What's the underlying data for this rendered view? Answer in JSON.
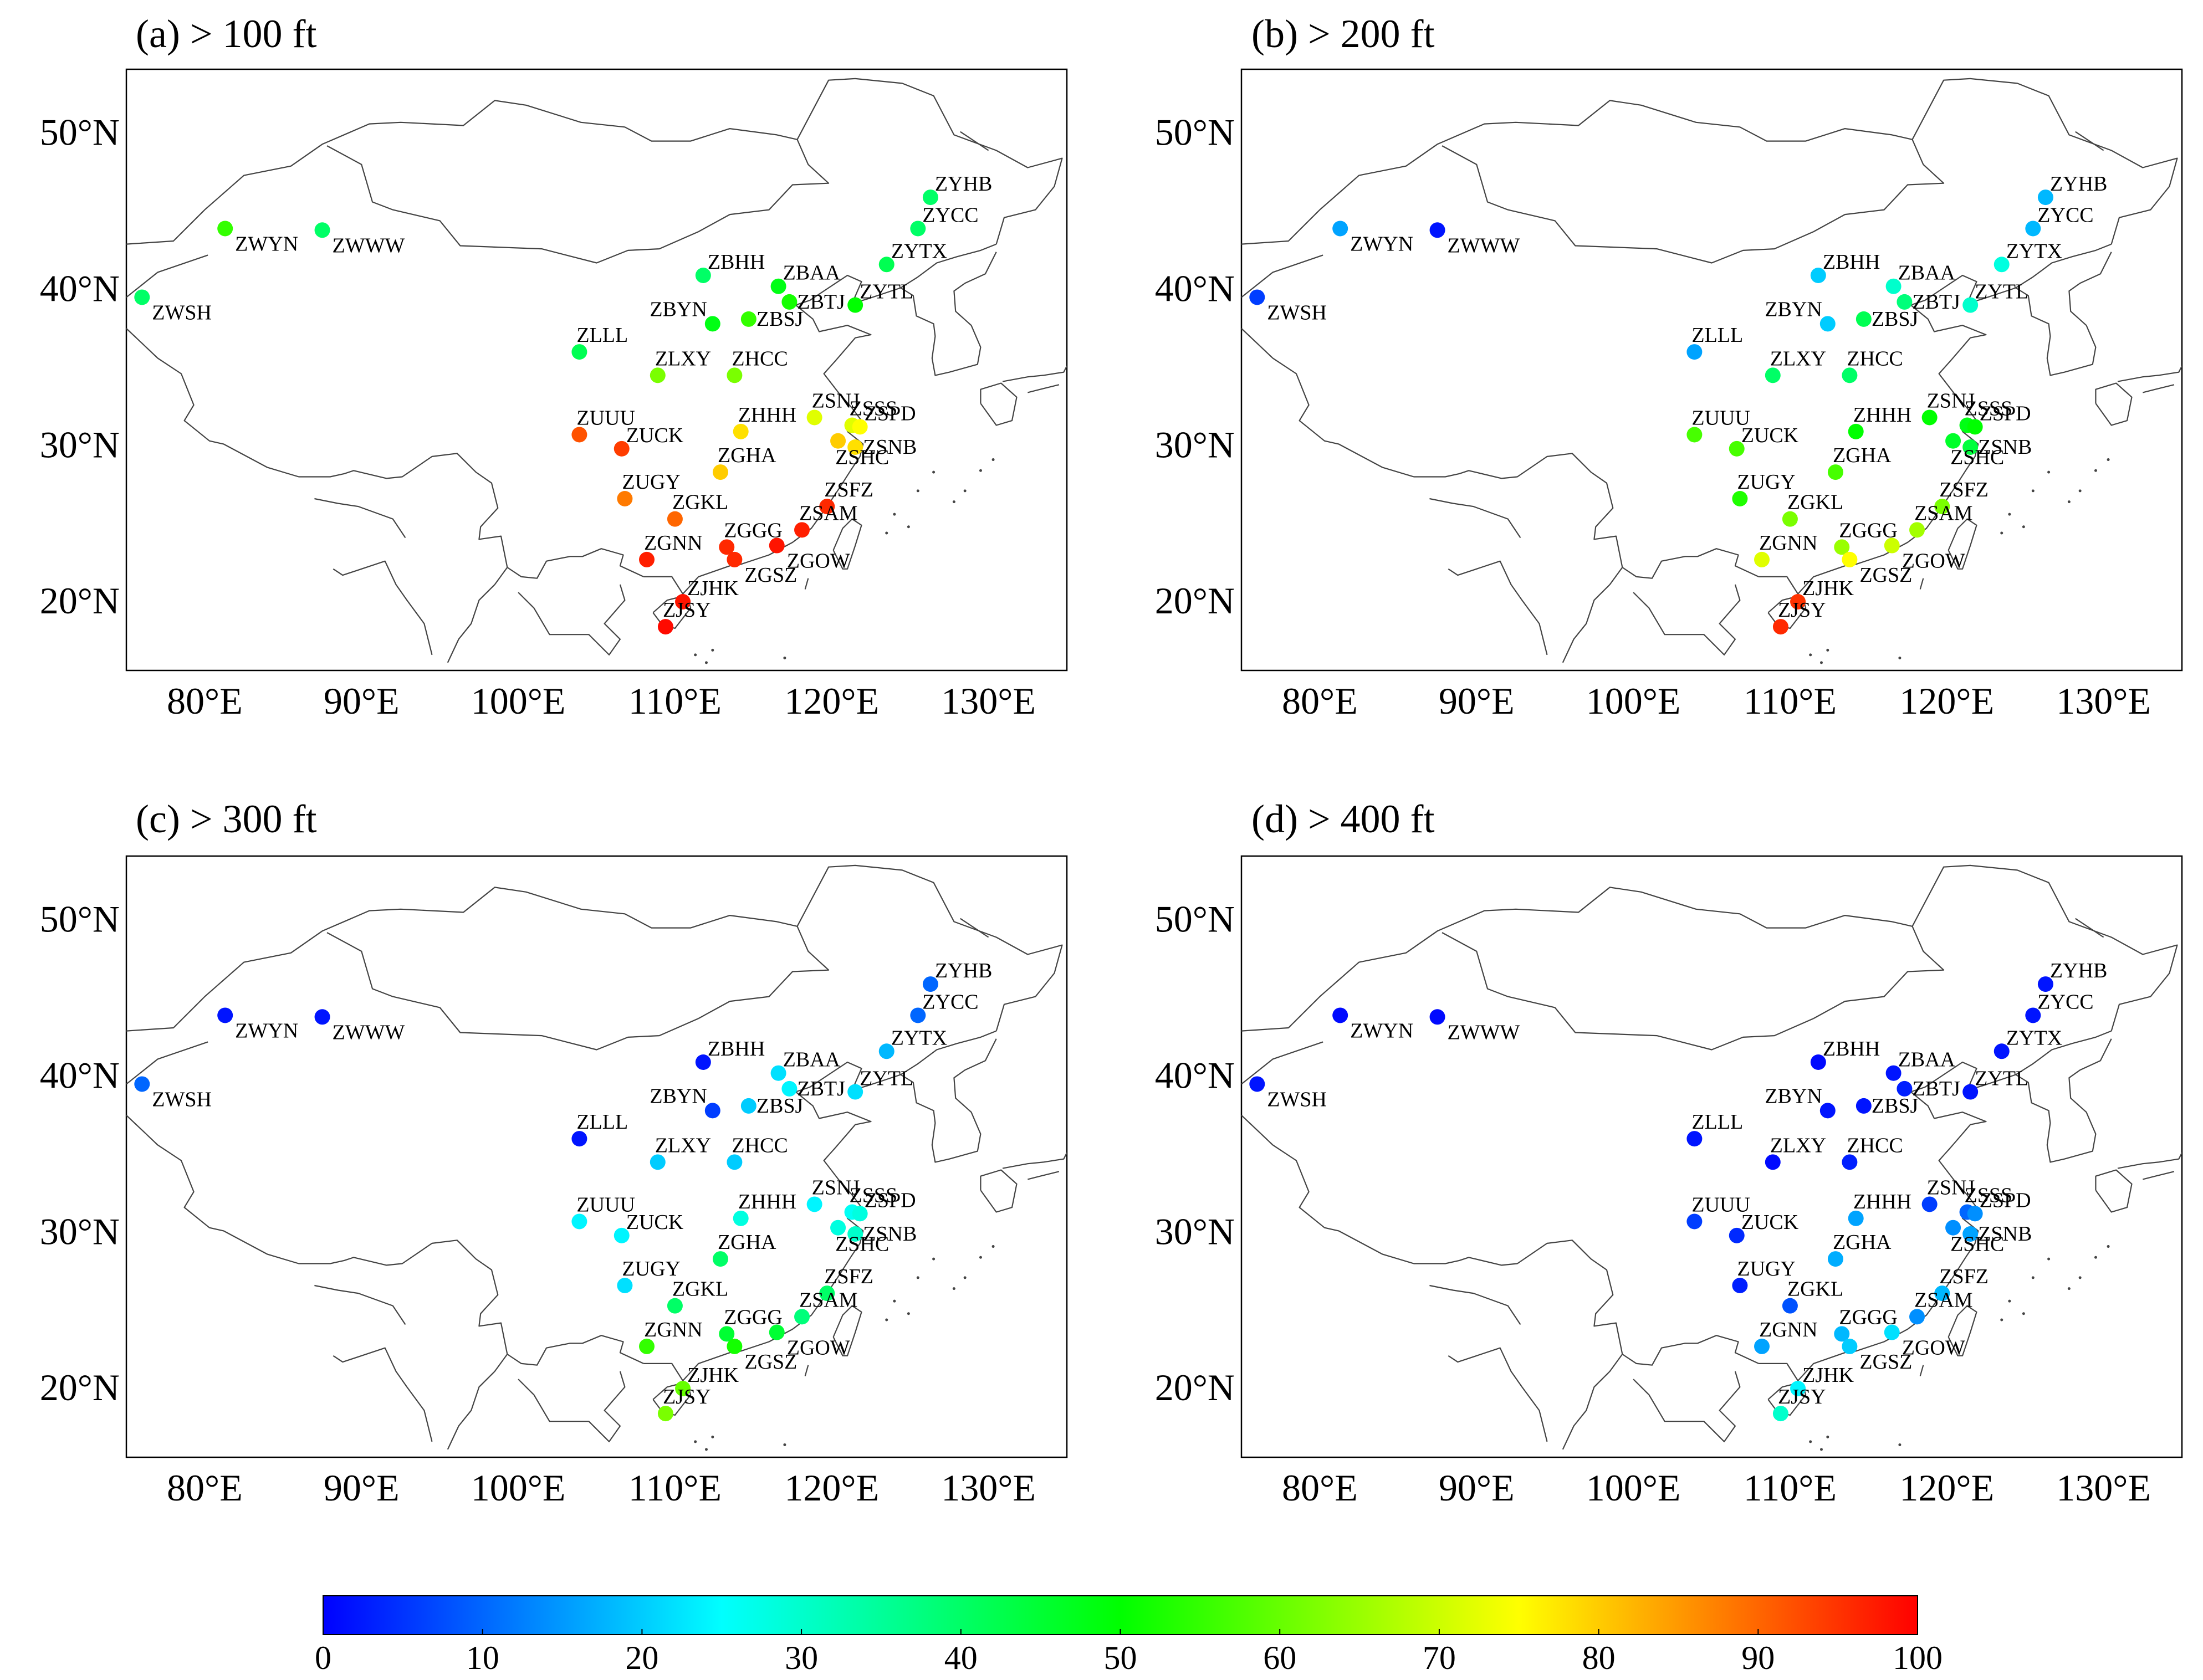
{
  "figure": {
    "panels": [
      {
        "id": "a",
        "title": "(a) > 100 ft",
        "values": {
          "ZYHB": 40,
          "ZYCC": 40,
          "ZYTX": 42,
          "ZWYN": 55,
          "ZWWW": 40,
          "ZWSH": 40,
          "ZBHH": 40,
          "ZBAA": 48,
          "ZBTJ": 52,
          "ZYTL": 50,
          "ZBYN": 48,
          "ZBSJ": 55,
          "ZLLL": 42,
          "ZLXY": 62,
          "ZHCC": 62,
          "ZSNJ": 72,
          "ZSSS": 72,
          "ZSPD": 75,
          "ZUUU": 92,
          "ZUCK": 94,
          "ZHHH": 78,
          "ZSNB": 78,
          "ZSHC": 80,
          "ZGHA": 80,
          "ZUGY": 88,
          "ZSFZ": 96,
          "ZGKL": 90,
          "ZSAM": 97,
          "ZGNN": 97,
          "ZGGG": 96,
          "ZGOW": 98,
          "ZGSZ": 96,
          "ZJHK": 98,
          "ZJSY": 99
        }
      },
      {
        "id": "b",
        "title": "(b) > 200 ft",
        "values": {
          "ZYHB": 18,
          "ZYCC": 18,
          "ZYTX": 28,
          "ZWYN": 16,
          "ZWWW": 2,
          "ZWSH": 6,
          "ZBHH": 20,
          "ZBAA": 30,
          "ZBTJ": 38,
          "ZYTL": 30,
          "ZBYN": 20,
          "ZBSJ": 42,
          "ZLLL": 16,
          "ZLXY": 40,
          "ZHCC": 40,
          "ZSNJ": 50,
          "ZSSS": 48,
          "ZSPD": 50,
          "ZUUU": 57,
          "ZUCK": 57,
          "ZHHH": 50,
          "ZSNB": 44,
          "ZSHC": 46,
          "ZGHA": 57,
          "ZUGY": 53,
          "ZSFZ": 62,
          "ZGKL": 62,
          "ZSAM": 66,
          "ZGNN": 72,
          "ZGGG": 65,
          "ZGOW": 70,
          "ZGSZ": 75,
          "ZJHK": 95,
          "ZJSY": 96
        }
      },
      {
        "id": "c",
        "title": "(c) > 300 ft",
        "values": {
          "ZYHB": 10,
          "ZYCC": 10,
          "ZYTX": 18,
          "ZWYN": 2,
          "ZWWW": 2,
          "ZWSH": 10,
          "ZBHH": 2,
          "ZBAA": 22,
          "ZBTJ": 24,
          "ZYTL": 22,
          "ZBYN": 6,
          "ZBSJ": 20,
          "ZLLL": 2,
          "ZLXY": 20,
          "ZHCC": 20,
          "ZSNJ": 24,
          "ZSSS": 26,
          "ZSPD": 28,
          "ZUUU": 24,
          "ZUCK": 24,
          "ZHHH": 28,
          "ZSNB": 30,
          "ZSHC": 28,
          "ZGHA": 40,
          "ZUGY": 22,
          "ZSFZ": 40,
          "ZGKL": 40,
          "ZSAM": 38,
          "ZGNN": 55,
          "ZGGG": 45,
          "ZGOW": 45,
          "ZGSZ": 52,
          "ZJHK": 60,
          "ZJSY": 62
        }
      },
      {
        "id": "d",
        "title": "(d) > 400 ft",
        "values": {
          "ZYHB": 2,
          "ZYCC": 2,
          "ZYTX": 2,
          "ZWYN": 1,
          "ZWWW": 1,
          "ZWSH": 2,
          "ZBHH": 1,
          "ZBAA": 2,
          "ZBTJ": 3,
          "ZYTL": 2,
          "ZBYN": 2,
          "ZBSJ": 2,
          "ZLLL": 2,
          "ZLXY": 1,
          "ZHCC": 3,
          "ZSNJ": 6,
          "ZSSS": 10,
          "ZSPD": 14,
          "ZUUU": 6,
          "ZUCK": 4,
          "ZHHH": 16,
          "ZSNB": 16,
          "ZSHC": 14,
          "ZGHA": 17,
          "ZUGY": 3,
          "ZSFZ": 18,
          "ZGKL": 8,
          "ZSAM": 14,
          "ZGNN": 16,
          "ZGGG": 18,
          "ZGOW": 22,
          "ZGSZ": 20,
          "ZJHK": 24,
          "ZJSY": 30
        }
      }
    ],
    "map": {
      "lon_range": [
        75,
        135
      ],
      "lat_range": [
        15.5,
        54
      ],
      "lon_ticks": [
        {
          "value": 80,
          "label": "80°E"
        },
        {
          "value": 90,
          "label": "90°E"
        },
        {
          "value": 100,
          "label": "100°E"
        },
        {
          "value": 110,
          "label": "110°E"
        },
        {
          "value": 120,
          "label": "120°E"
        },
        {
          "value": 130,
          "label": "130°E"
        }
      ],
      "lat_ticks": [
        {
          "value": 20,
          "label": "20°N"
        },
        {
          "value": 30,
          "label": "30°N"
        },
        {
          "value": 40,
          "label": "40°N"
        },
        {
          "value": 50,
          "label": "50°N"
        }
      ]
    },
    "stations": [
      {
        "code": "ZYHB",
        "lon": 126.3,
        "lat": 45.8,
        "label_side": "right-up"
      },
      {
        "code": "ZYCC",
        "lon": 125.5,
        "lat": 43.8,
        "label_side": "right-up"
      },
      {
        "code": "ZYTX",
        "lon": 123.5,
        "lat": 41.5,
        "label_side": "right-up"
      },
      {
        "code": "ZWYN",
        "lon": 81.3,
        "lat": 43.8,
        "label_side": "right-down"
      },
      {
        "code": "ZWWW",
        "lon": 87.5,
        "lat": 43.7,
        "label_side": "right-down"
      },
      {
        "code": "ZWSH",
        "lon": 76.0,
        "lat": 39.4,
        "label_side": "right-down"
      },
      {
        "code": "ZBHH",
        "lon": 111.8,
        "lat": 40.8,
        "label_side": "right-up"
      },
      {
        "code": "ZBAA",
        "lon": 116.6,
        "lat": 40.1,
        "label_side": "right-up"
      },
      {
        "code": "ZBTJ",
        "lon": 117.3,
        "lat": 39.1,
        "label_side": "right"
      },
      {
        "code": "ZYTL",
        "lon": 121.5,
        "lat": 38.9,
        "label_side": "right-up"
      },
      {
        "code": "ZBYN",
        "lon": 112.4,
        "lat": 37.7,
        "label_side": "left-up"
      },
      {
        "code": "ZBSJ",
        "lon": 114.7,
        "lat": 38.0,
        "label_side": "right"
      },
      {
        "code": "ZLLL",
        "lon": 103.9,
        "lat": 35.9,
        "label_side": "up"
      },
      {
        "code": "ZLXY",
        "lon": 108.9,
        "lat": 34.4,
        "label_side": "up"
      },
      {
        "code": "ZHCC",
        "lon": 113.8,
        "lat": 34.4,
        "label_side": "up"
      },
      {
        "code": "ZSNJ",
        "lon": 118.9,
        "lat": 31.7,
        "label_side": "up"
      },
      {
        "code": "ZSSS",
        "lon": 121.3,
        "lat": 31.2,
        "label_side": "up"
      },
      {
        "code": "ZSPD",
        "lon": 121.8,
        "lat": 31.1,
        "label_side": "right-up"
      },
      {
        "code": "ZUUU",
        "lon": 103.9,
        "lat": 30.6,
        "label_side": "up"
      },
      {
        "code": "ZUCK",
        "lon": 106.6,
        "lat": 29.7,
        "label_side": "right-up"
      },
      {
        "code": "ZHHH",
        "lon": 114.2,
        "lat": 30.8,
        "label_side": "up"
      },
      {
        "code": "ZSNB",
        "lon": 121.5,
        "lat": 29.8,
        "label_side": "right"
      },
      {
        "code": "ZSHC",
        "lon": 120.4,
        "lat": 30.2,
        "label_side": "down"
      },
      {
        "code": "ZGHA",
        "lon": 112.9,
        "lat": 28.2,
        "label_side": "up"
      },
      {
        "code": "ZUGY",
        "lon": 106.8,
        "lat": 26.5,
        "label_side": "up"
      },
      {
        "code": "ZSFZ",
        "lon": 119.7,
        "lat": 26.0,
        "label_side": "up"
      },
      {
        "code": "ZGKL",
        "lon": 110.0,
        "lat": 25.2,
        "label_side": "up"
      },
      {
        "code": "ZSAM",
        "lon": 118.1,
        "lat": 24.5,
        "label_side": "up"
      },
      {
        "code": "ZGNN",
        "lon": 108.2,
        "lat": 22.6,
        "label_side": "up"
      },
      {
        "code": "ZGGG",
        "lon": 113.3,
        "lat": 23.4,
        "label_side": "up"
      },
      {
        "code": "ZGOW",
        "lon": 116.5,
        "lat": 23.5,
        "label_side": "right-down"
      },
      {
        "code": "ZGSZ",
        "lon": 113.8,
        "lat": 22.6,
        "label_side": "right-down"
      },
      {
        "code": "ZJHK",
        "lon": 110.5,
        "lat": 19.9,
        "label_side": "right-up"
      },
      {
        "code": "ZJSY",
        "lon": 109.4,
        "lat": 18.3,
        "label_side": "up"
      }
    ],
    "colorbar": {
      "min": 0,
      "max": 100,
      "ticks": [
        "0",
        "10",
        "20",
        "30",
        "40",
        "50",
        "60",
        "70",
        "80",
        "90",
        "100"
      ],
      "colors": [
        "#0000ff",
        "#00ffff",
        "#00ff00",
        "#ffff00",
        "#ff0000"
      ]
    }
  }
}
